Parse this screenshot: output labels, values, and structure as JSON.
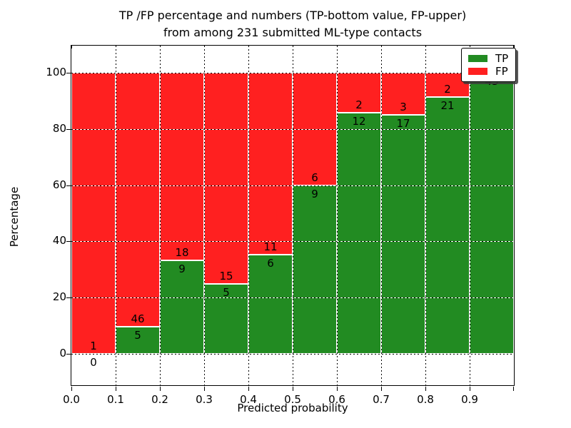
{
  "title": {
    "line1": "TP /FP percentage and numbers (TP-bottom value, FP-upper)",
    "line2": "from among 231 submitted ML-type contacts"
  },
  "axes": {
    "xlabel": "Predicted probability",
    "ylabel": "Percentage",
    "x_tick_labels": [
      "0.0",
      "0.1",
      "0.2",
      "0.3",
      "0.4",
      "0.5",
      "0.6",
      "0.7",
      "0.8",
      "0.9"
    ],
    "y_tick_labels": [
      "0",
      "20",
      "40",
      "60",
      "80",
      "100"
    ],
    "y_tick_values": [
      0,
      20,
      40,
      60,
      80,
      100
    ]
  },
  "legend": {
    "entries": [
      {
        "label": "TP",
        "color": "#228b22"
      },
      {
        "label": "FP",
        "color": "#ff2020"
      }
    ]
  },
  "colors": {
    "tp": "#228b22",
    "fp": "#ff2020",
    "grid": "#000000"
  },
  "chart_data": {
    "type": "bar",
    "stacked": true,
    "normalized_to_percent": true,
    "title": "TP /FP percentage and numbers (TP-bottom value, FP-upper) from among 231 submitted ML-type contacts",
    "xlabel": "Predicted probability",
    "ylabel": "Percentage",
    "total_contacts": 231,
    "bin_edges": [
      0.0,
      0.1,
      0.2,
      0.3,
      0.4,
      0.5,
      0.6,
      0.7,
      0.8,
      0.9,
      1.0
    ],
    "categories": [
      "0.0-0.1",
      "0.1-0.2",
      "0.2-0.3",
      "0.3-0.4",
      "0.4-0.5",
      "0.5-0.6",
      "0.6-0.7",
      "0.7-0.8",
      "0.8-0.9",
      "0.9-1.0"
    ],
    "series": [
      {
        "name": "TP",
        "color": "#228b22",
        "values": [
          0,
          5,
          9,
          5,
          6,
          9,
          12,
          17,
          21,
          43
        ]
      },
      {
        "name": "FP",
        "color": "#ff2020",
        "values": [
          1,
          46,
          18,
          15,
          11,
          6,
          2,
          3,
          2,
          0
        ]
      }
    ],
    "tp_percent": [
      0.0,
      9.8,
      33.3,
      25.0,
      35.3,
      60.0,
      85.7,
      85.0,
      91.3,
      100.0
    ],
    "fp_label_visible": [
      true,
      true,
      true,
      true,
      true,
      true,
      true,
      true,
      true,
      false
    ],
    "xlim": [
      0.0,
      1.0
    ],
    "ylim": [
      -11.1,
      109.6
    ],
    "grid": true,
    "legend_position": "upper right"
  }
}
